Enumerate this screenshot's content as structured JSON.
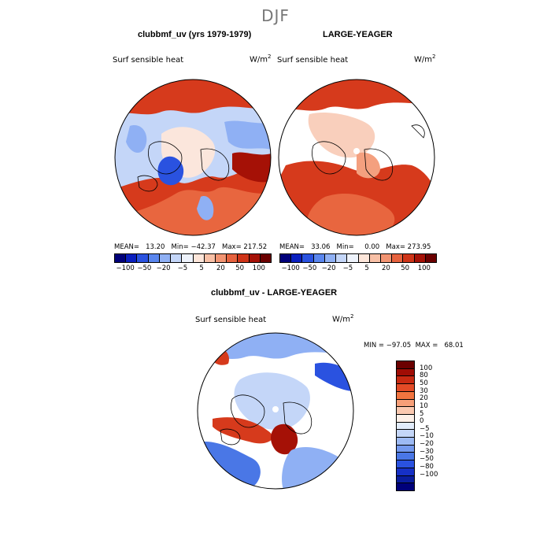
{
  "figure": {
    "season": "DJF"
  },
  "panels": [
    {
      "title": "clubbmf_uv (yrs 1979-1979)",
      "field": "Surf sensible heat",
      "units_base": "W/m",
      "units_exp": "2",
      "stats": "MEAN=   13.20   Min= −42.37   Max= 217.52"
    },
    {
      "title": "LARGE-YEAGER",
      "field": "Surf sensible heat",
      "units_base": "W/m",
      "units_exp": "2",
      "stats": "MEAN=   33.06   Min=     0.00   Max= 273.95"
    },
    {
      "title": "clubbmf_uv - LARGE-YEAGER",
      "field": "Surf sensible heat",
      "units_base": "W/m",
      "units_exp": "2",
      "stats": "MIN = −97.05  MAX =   68.01"
    }
  ],
  "colorbar_top": {
    "colors": [
      "#00007a",
      "#0a1fbf",
      "#2a52e0",
      "#5a86ee",
      "#8fb0f4",
      "#c4d6f8",
      "#eef3fc",
      "#fde6da",
      "#f8c0a6",
      "#f29472",
      "#e6623e",
      "#cf3418",
      "#a51106",
      "#6b0000"
    ],
    "tick_labels": [
      "−100",
      "−50",
      "−20",
      "−5",
      "5",
      "20",
      "50",
      "100"
    ]
  },
  "colorbar_diff": {
    "colors": [
      "#6b0000",
      "#a00d05",
      "#c82a12",
      "#e34b26",
      "#f2743f",
      "#f79f78",
      "#fbc9b0",
      "#fdf0e8",
      "#e2ecfb",
      "#c4d6f8",
      "#9dbaf4",
      "#7499ee",
      "#4a77e6",
      "#2a52e0",
      "#1630c6",
      "#0a1d9e",
      "#00007a"
    ],
    "labels": [
      "100",
      "80",
      "50",
      "30",
      "20",
      "10",
      "5",
      "0",
      "−5",
      "−10",
      "−20",
      "−30",
      "−50",
      "−80",
      "−100"
    ]
  },
  "palette": {
    "dark_red": "#a51106",
    "red": "#d63a1c",
    "orange_red": "#e8663f",
    "salmon": "#f4a07f",
    "light_salmon": "#f9cfbc",
    "pale": "#fbe6dc",
    "light_blue": "#c4d6f8",
    "mid_blue": "#8fb0f4",
    "blue": "#4a77e6",
    "deep_blue": "#2a52e0",
    "white": "#ffffff"
  }
}
